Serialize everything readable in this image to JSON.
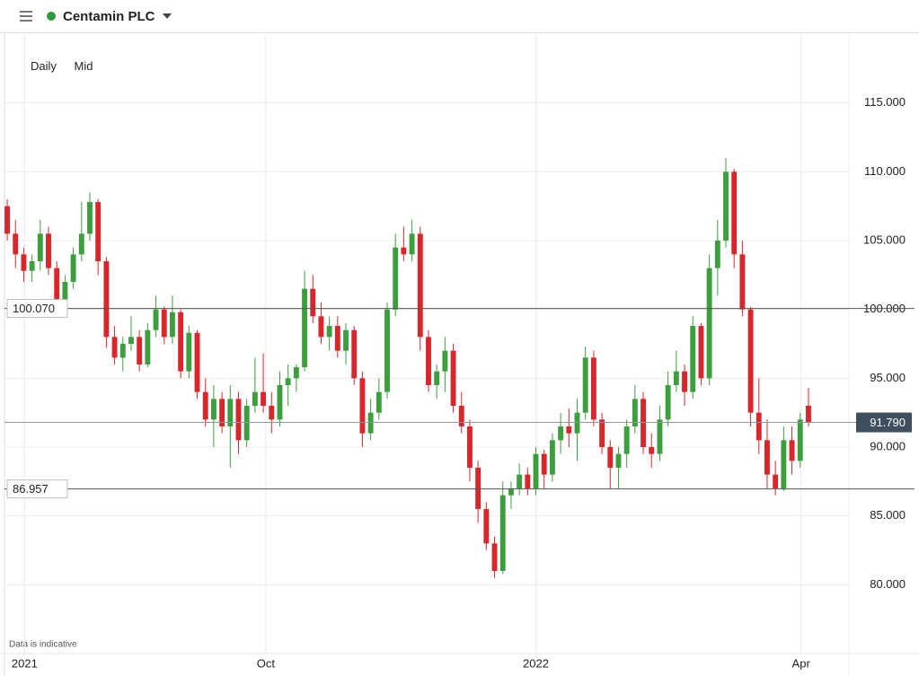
{
  "header": {
    "title": "Centamin PLC"
  },
  "toolbar": {
    "interval": "Daily",
    "price": "Mid"
  },
  "chart_data": {
    "type": "candlestick",
    "note": "Data is indicative",
    "up_color": "#3d9e3d",
    "down_color": "#d9262b",
    "open": [
      107.5,
      105.5,
      104,
      102.8,
      103.5,
      105.5,
      103,
      100.5,
      102,
      104,
      105.5,
      107.8,
      103.5,
      98,
      96.5,
      97.5,
      98,
      96,
      98.5,
      100,
      98,
      99.8,
      95.5,
      98.3,
      94,
      92,
      93.5,
      91.5,
      93.5,
      90.5,
      93,
      94,
      93,
      92,
      94.5,
      95,
      95.8,
      101.5,
      99.5,
      98,
      98.8,
      97,
      98.5,
      95,
      91,
      92.5,
      94,
      100,
      104.5,
      104,
      105.5,
      98,
      94.5,
      95.5,
      97,
      93,
      91.5,
      88.5,
      85.5,
      83,
      81,
      86.5,
      87,
      88,
      87,
      89.5,
      88,
      90.5,
      91.5,
      91,
      92.5,
      96.5,
      92,
      90,
      88.5,
      89.5,
      91.5,
      93.5,
      90,
      89.5,
      92,
      94.5,
      95.5,
      94,
      98.8,
      95,
      103,
      105,
      110,
      104,
      100,
      92.5,
      90.5,
      88,
      87,
      90.5,
      89,
      93
    ],
    "high": [
      108,
      106.5,
      104.5,
      104,
      106.5,
      106,
      103.5,
      102.5,
      104.5,
      107.8,
      108.5,
      108,
      103.8,
      98.8,
      98,
      99.5,
      98.5,
      99,
      101,
      100.2,
      101,
      100,
      98.8,
      98.5,
      95,
      94.5,
      94,
      94.5,
      94,
      93.5,
      96.5,
      96.8,
      94,
      95.5,
      96,
      96,
      102.8,
      102.5,
      100.5,
      99.5,
      99.5,
      99,
      98.8,
      95.5,
      93.5,
      95,
      100.5,
      105.5,
      106,
      106.5,
      106,
      98.5,
      96,
      98,
      97.5,
      94,
      92,
      89,
      86,
      83.5,
      87.5,
      87.5,
      88.8,
      88.5,
      90,
      89.8,
      91,
      92.5,
      92.8,
      93.5,
      97.3,
      97,
      92.5,
      90.5,
      90,
      92,
      94.5,
      94,
      91,
      93,
      95.5,
      97,
      96,
      99.5,
      99,
      104,
      106.5,
      111,
      110.2,
      105,
      100.2,
      95,
      92,
      89,
      91.5,
      91.5,
      92.5,
      94.3
    ],
    "low": [
      105,
      103,
      102,
      102,
      102.8,
      102.5,
      99.5,
      100,
      101.5,
      103.5,
      105,
      102.5,
      97.2,
      96,
      95.5,
      97,
      95.5,
      95.8,
      98,
      97.5,
      97.5,
      95,
      95,
      93.5,
      91.5,
      90,
      91,
      88.5,
      89.5,
      90,
      92.5,
      92.5,
      91,
      91.5,
      93,
      94,
      95.5,
      99,
      97.5,
      97,
      96.5,
      96,
      94.5,
      90,
      90.5,
      92,
      93.5,
      99.5,
      103.5,
      103.5,
      97,
      94,
      93.5,
      94,
      92.5,
      91,
      87.5,
      84.5,
      82.5,
      80.5,
      80.8,
      85.5,
      86.5,
      86.5,
      86.5,
      87,
      87.5,
      89.5,
      90,
      89,
      92,
      91.5,
      89.5,
      87,
      87,
      88.5,
      91,
      89.5,
      88.5,
      89,
      91.5,
      94,
      93,
      93.5,
      94.5,
      94.5,
      101,
      104.5,
      103,
      99.5,
      91.5,
      89.5,
      87,
      86.5,
      86.8,
      88,
      88.5,
      91.5
    ],
    "close": [
      105.5,
      104,
      102.8,
      103.5,
      105.5,
      103,
      100.5,
      102,
      104,
      105.5,
      107.8,
      103.5,
      98,
      96.5,
      97.5,
      98,
      96,
      98.5,
      100,
      98,
      99.8,
      95.5,
      98.3,
      94,
      92,
      93.5,
      91.5,
      93.5,
      90.5,
      93,
      94,
      93,
      92,
      94.5,
      95,
      95.8,
      101.5,
      99.5,
      98,
      98.8,
      97,
      98.5,
      95,
      91,
      92.5,
      94,
      100,
      104.5,
      104,
      105.5,
      98,
      94.5,
      95.5,
      97,
      93,
      91.5,
      88.5,
      85.5,
      83,
      81,
      86.5,
      87,
      88,
      87,
      89.5,
      88,
      90.5,
      91.5,
      91,
      92.5,
      96.5,
      92,
      90,
      88.5,
      89.5,
      91.5,
      93.5,
      90,
      89.5,
      92,
      94.5,
      95.5,
      94,
      98.8,
      95,
      103,
      105,
      110,
      104,
      100,
      92.5,
      90.5,
      88,
      87,
      90.5,
      89,
      92,
      91.79
    ],
    "xlim": [
      -0.33,
      101.9
    ],
    "xticks": [
      {
        "value": 2.1,
        "label": "2021"
      },
      {
        "value": 31.3,
        "label": "Oct"
      },
      {
        "value": 64,
        "label": "2022"
      },
      {
        "value": 96.1,
        "label": "Apr"
      }
    ],
    "ylim": [
      75,
      120
    ],
    "yticks": [
      {
        "value": 80,
        "label": "80.000"
      },
      {
        "value": 85,
        "label": "85.000"
      },
      {
        "value": 90,
        "label": "90.000"
      },
      {
        "value": 95,
        "label": "95.000"
      },
      {
        "value": 100,
        "label": "100.000"
      },
      {
        "value": 105,
        "label": "105.000"
      },
      {
        "value": 110,
        "label": "110.000"
      },
      {
        "value": 115,
        "label": "115.000"
      }
    ],
    "levels": [
      {
        "value": 100.07,
        "label": "100.070"
      },
      {
        "value": 86.957,
        "label": "86.957"
      }
    ],
    "last_price": {
      "value": 91.79,
      "label": "91.790"
    }
  }
}
